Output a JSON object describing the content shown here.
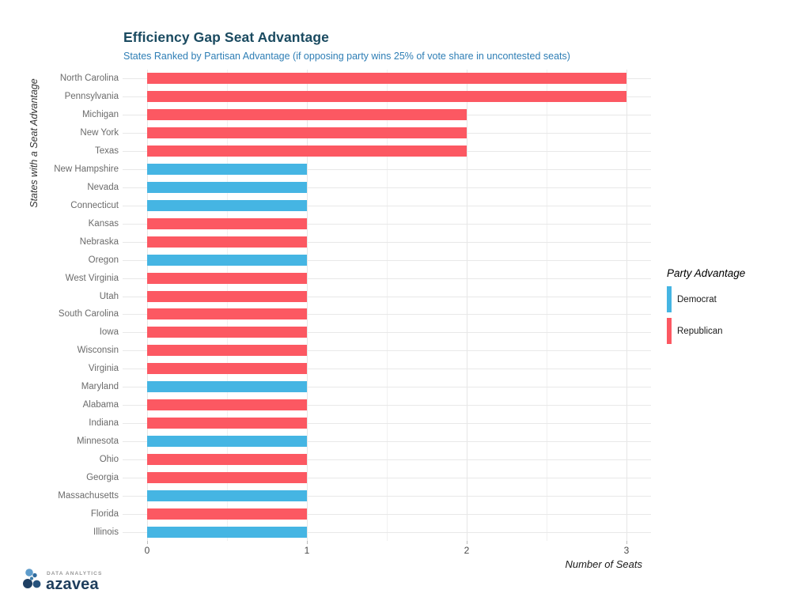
{
  "chart_data": {
    "type": "bar",
    "orientation": "horizontal",
    "title": "Efficiency Gap Seat Advantage",
    "subtitle": "States Ranked by Partisan Advantage (if opposing party wins 25% of vote share in uncontested seats)",
    "xlabel": "Number of Seats",
    "ylabel": "States with a Seat Advantage",
    "xlim": [
      0,
      3.15
    ],
    "xticks": [
      0,
      1,
      2,
      3
    ],
    "grid": true,
    "legend": {
      "title": "Party Advantage",
      "position": "right",
      "entries": [
        {
          "label": "Democrat",
          "color": "#45B5E3"
        },
        {
          "label": "Republican",
          "color": "#FC5862"
        }
      ]
    },
    "bars": [
      {
        "state": "North Carolina",
        "seats": 3,
        "party": "Republican"
      },
      {
        "state": "Pennsylvania",
        "seats": 3,
        "party": "Republican"
      },
      {
        "state": "Michigan",
        "seats": 2,
        "party": "Republican"
      },
      {
        "state": "New York",
        "seats": 2,
        "party": "Republican"
      },
      {
        "state": "Texas",
        "seats": 2,
        "party": "Republican"
      },
      {
        "state": "New Hampshire",
        "seats": 1,
        "party": "Democrat"
      },
      {
        "state": "Nevada",
        "seats": 1,
        "party": "Democrat"
      },
      {
        "state": "Connecticut",
        "seats": 1,
        "party": "Democrat"
      },
      {
        "state": "Kansas",
        "seats": 1,
        "party": "Republican"
      },
      {
        "state": "Nebraska",
        "seats": 1,
        "party": "Republican"
      },
      {
        "state": "Oregon",
        "seats": 1,
        "party": "Democrat"
      },
      {
        "state": "West Virginia",
        "seats": 1,
        "party": "Republican"
      },
      {
        "state": "Utah",
        "seats": 1,
        "party": "Republican"
      },
      {
        "state": "South Carolina",
        "seats": 1,
        "party": "Republican"
      },
      {
        "state": "Iowa",
        "seats": 1,
        "party": "Republican"
      },
      {
        "state": "Wisconsin",
        "seats": 1,
        "party": "Republican"
      },
      {
        "state": "Virginia",
        "seats": 1,
        "party": "Republican"
      },
      {
        "state": "Maryland",
        "seats": 1,
        "party": "Democrat"
      },
      {
        "state": "Alabama",
        "seats": 1,
        "party": "Republican"
      },
      {
        "state": "Indiana",
        "seats": 1,
        "party": "Republican"
      },
      {
        "state": "Minnesota",
        "seats": 1,
        "party": "Democrat"
      },
      {
        "state": "Ohio",
        "seats": 1,
        "party": "Republican"
      },
      {
        "state": "Georgia",
        "seats": 1,
        "party": "Republican"
      },
      {
        "state": "Massachusetts",
        "seats": 1,
        "party": "Democrat"
      },
      {
        "state": "Florida",
        "seats": 1,
        "party": "Republican"
      },
      {
        "state": "Illinois",
        "seats": 1,
        "party": "Democrat"
      }
    ]
  },
  "colors": {
    "title": "#1A4A60",
    "subtitle": "#2E7EB5",
    "grid_major": "#E6E6E6",
    "grid_minor": "#F1F1F1",
    "democrat": "#45B5E3",
    "republican": "#FC5862"
  },
  "logo": {
    "tagline": "DATA ANALYTICS",
    "brand": "azavea"
  }
}
